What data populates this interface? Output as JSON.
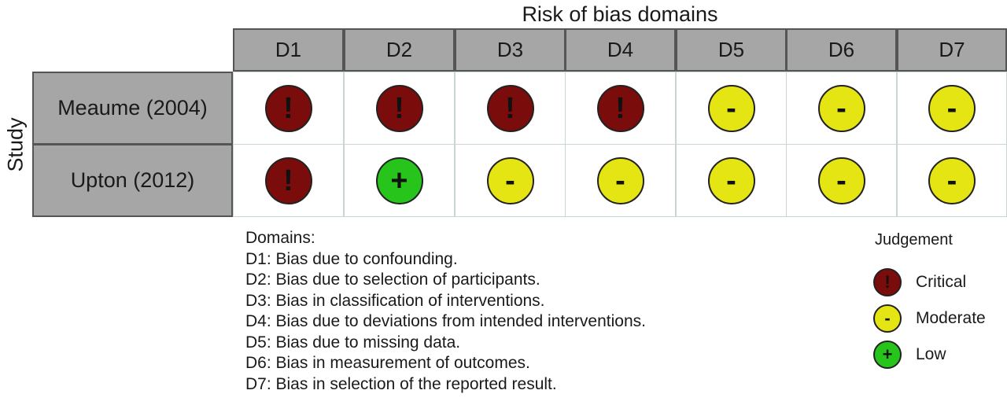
{
  "title": "Risk of bias domains",
  "ylabel": "Study",
  "domains": [
    "D1",
    "D2",
    "D3",
    "D4",
    "D5",
    "D6",
    "D7"
  ],
  "studies": [
    {
      "name": "Meaume (2004)",
      "judgements": [
        "critical",
        "critical",
        "critical",
        "critical",
        "moderate",
        "moderate",
        "moderate"
      ]
    },
    {
      "name": "Upton (2012)",
      "judgements": [
        "critical",
        "low",
        "moderate",
        "moderate",
        "moderate",
        "moderate",
        "moderate"
      ]
    }
  ],
  "judgement_types": {
    "critical": {
      "symbol": "!",
      "color": "#7a0c0c",
      "label": "Critical"
    },
    "moderate": {
      "symbol": "-",
      "color": "#e5e514",
      "label": "Moderate"
    },
    "low": {
      "symbol": "+",
      "color": "#27c41c",
      "label": "Low"
    }
  },
  "legend": {
    "title": "Judgement",
    "order": [
      "critical",
      "moderate",
      "low"
    ]
  },
  "domains_heading": "Domains:",
  "domain_descriptions": [
    "D1: Bias due to confounding.",
    "D2: Bias due to selection of participants.",
    "D3: Bias in classification of interventions.",
    "D4: Bias due to deviations from intended interventions.",
    "D5: Bias due to missing data.",
    "D6: Bias in measurement of outcomes.",
    "D7: Bias in selection of the reported result."
  ]
}
